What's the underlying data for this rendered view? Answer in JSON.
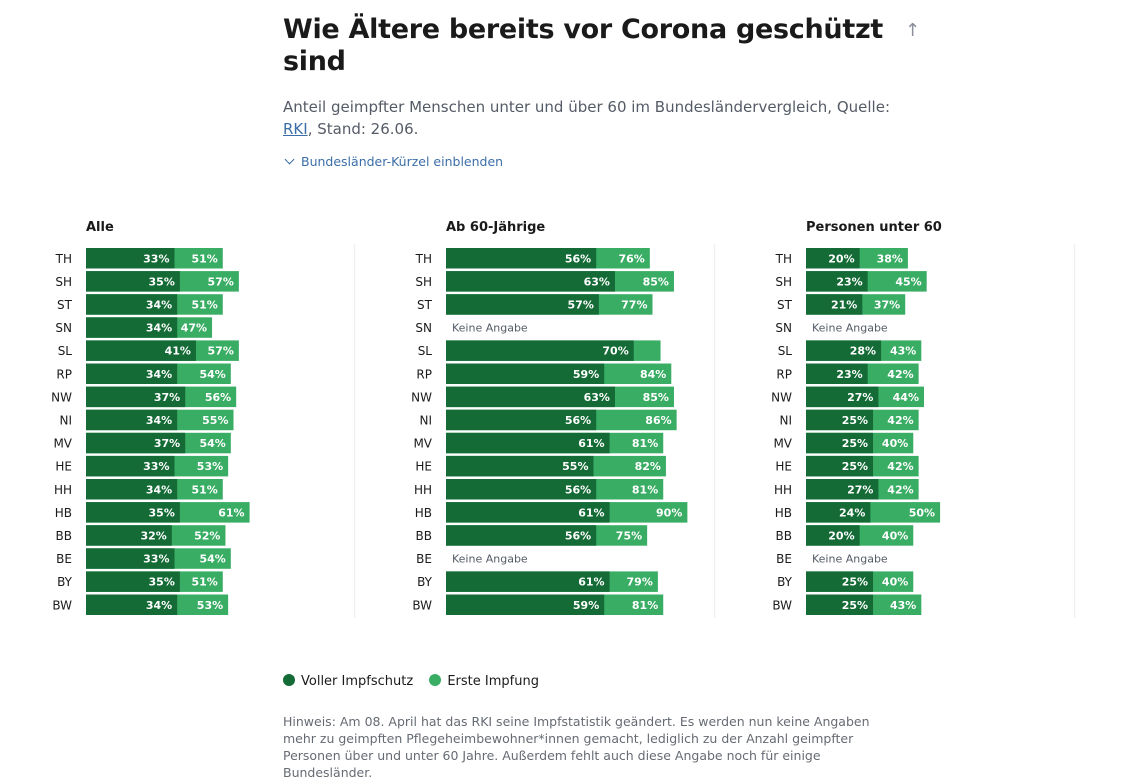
{
  "header": {
    "title": "Wie Ältere bereits vor Corona geschützt sind",
    "subtitle_pre": "Anteil geimpfter Menschen unter und über 60 im Bundesländervergleich, Quelle: ",
    "subtitle_link": "RKI",
    "subtitle_post": ", Stand: 26.06.",
    "toggle_label": "Bundesländer-Kürzel einblenden",
    "up_arrow": "↑"
  },
  "colors": {
    "full": "#146b36",
    "first": "#3aad64",
    "muted": "#555b66"
  },
  "chart_data": [
    {
      "type": "bar",
      "orientation": "horizontal",
      "stacked": "overlay",
      "title": "Alle",
      "categories": [
        "TH",
        "SH",
        "ST",
        "SN",
        "SL",
        "RP",
        "NW",
        "NI",
        "MV",
        "HE",
        "HH",
        "HB",
        "BB",
        "BE",
        "BY",
        "BW"
      ],
      "series": [
        {
          "name": "Voller Impfschutz",
          "values": [
            33,
            35,
            34,
            34,
            41,
            34,
            37,
            34,
            37,
            33,
            34,
            35,
            32,
            33,
            35,
            34
          ]
        },
        {
          "name": "Erste Impfung",
          "values": [
            51,
            57,
            51,
            47,
            57,
            54,
            56,
            55,
            54,
            53,
            51,
            61,
            52,
            54,
            51,
            53
          ]
        }
      ],
      "labels_full": [
        "33%",
        "35%",
        "34%",
        "34%",
        "41%",
        "34%",
        "37%",
        "34%",
        "37%",
        "33%",
        "34%",
        "35%",
        "32%",
        "33%",
        "35%",
        "34%"
      ],
      "labels_first": [
        "51%",
        "57%",
        "51%",
        "47%",
        "57%",
        "54%",
        "56%",
        "55%",
        "54%",
        "53%",
        "51%",
        "61%",
        "52%",
        "54%",
        "51%",
        "53%"
      ],
      "xlim": [
        0,
        100
      ]
    },
    {
      "type": "bar",
      "orientation": "horizontal",
      "stacked": "overlay",
      "title": "Ab 60-Jährige",
      "categories": [
        "TH",
        "SH",
        "ST",
        "SN",
        "SL",
        "RP",
        "NW",
        "NI",
        "MV",
        "HE",
        "HH",
        "HB",
        "BB",
        "BE",
        "BY",
        "BW"
      ],
      "series": [
        {
          "name": "Voller Impfschutz",
          "values": [
            56,
            63,
            57,
            null,
            70,
            59,
            63,
            56,
            61,
            55,
            56,
            61,
            56,
            null,
            61,
            59
          ]
        },
        {
          "name": "Erste Impfung",
          "values": [
            76,
            85,
            77,
            null,
            null,
            84,
            85,
            86,
            81,
            82,
            81,
            90,
            75,
            null,
            79,
            81
          ]
        }
      ],
      "labels_full": [
        "56%",
        "63%",
        "57%",
        "",
        "70%",
        "59%",
        "63%",
        "56%",
        "61%",
        "55%",
        "56%",
        "61%",
        "56%",
        "",
        "61%",
        "59%"
      ],
      "labels_first": [
        "76%",
        "85%",
        "77%",
        "",
        "",
        "84%",
        "85%",
        "86%",
        "81%",
        "82%",
        "81%",
        "90%",
        "75%",
        "",
        "79%",
        "81%"
      ],
      "missing_label": "Keine Angabe",
      "xlim": [
        0,
        100
      ]
    },
    {
      "type": "bar",
      "orientation": "horizontal",
      "stacked": "overlay",
      "title": "Personen unter 60",
      "categories": [
        "TH",
        "SH",
        "ST",
        "SN",
        "SL",
        "RP",
        "NW",
        "NI",
        "MV",
        "HE",
        "HH",
        "HB",
        "BB",
        "BE",
        "BY",
        "BW"
      ],
      "series": [
        {
          "name": "Voller Impfschutz",
          "values": [
            20,
            23,
            21,
            null,
            28,
            23,
            27,
            25,
            25,
            25,
            27,
            24,
            20,
            null,
            25,
            25
          ]
        },
        {
          "name": "Erste Impfung",
          "values": [
            38,
            45,
            37,
            null,
            43,
            42,
            44,
            42,
            40,
            42,
            42,
            50,
            40,
            null,
            40,
            43
          ]
        }
      ],
      "labels_full": [
        "20%",
        "23%",
        "21%",
        "",
        "28%",
        "23%",
        "27%",
        "25%",
        "25%",
        "25%",
        "27%",
        "24%",
        "20%",
        "",
        "25%",
        "25%"
      ],
      "labels_first": [
        "38%",
        "45%",
        "37%",
        "",
        "43%",
        "42%",
        "44%",
        "42%",
        "40%",
        "42%",
        "42%",
        "50%",
        "40%",
        "",
        "40%",
        "43%"
      ],
      "missing_label": "Keine Angabe",
      "xlim": [
        0,
        100
      ]
    }
  ],
  "legend": {
    "full_label": "Voller Impfschutz",
    "first_label": "Erste Impfung"
  },
  "note": "Hinweis: Am 08. April hat das RKI seine Impfstatistik geändert. Es werden nun keine Angaben mehr zu geimpften Pflegeheimbewohner*innen gemacht, lediglich zu der Anzahl geimpfter Personen über und unter 60 Jahre. Außerdem fehlt auch diese Angabe noch für einige Bundesländer."
}
